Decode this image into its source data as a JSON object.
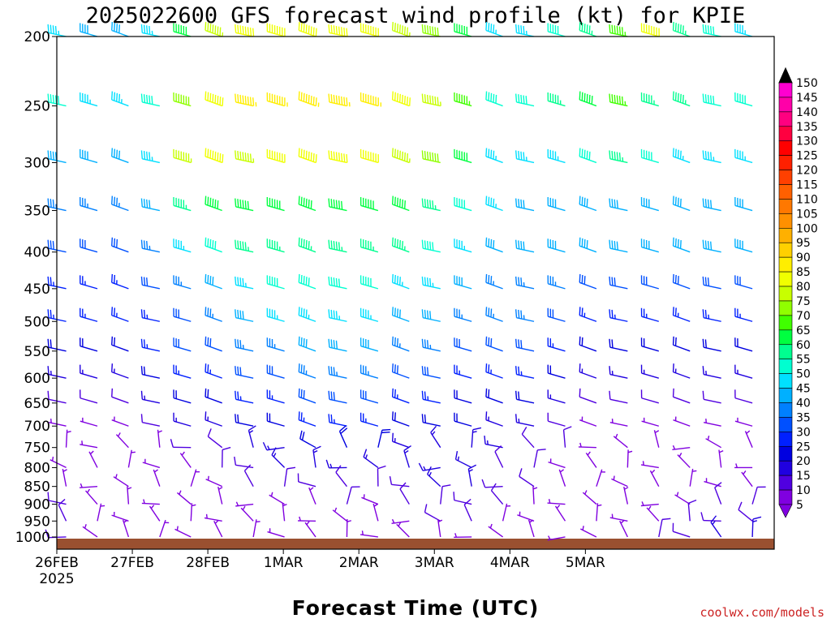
{
  "chart_data": {
    "type": "wind-profile",
    "title": "2025022600 GFS forecast wind profile (kt) for KPIE",
    "xlabel": "Forecast Time (UTC)",
    "ylabel": "",
    "credit": "coolwx.com/models",
    "x_ticks": [
      {
        "label": "26FEB",
        "sublabel": "2025"
      },
      {
        "label": "27FEB",
        "sublabel": ""
      },
      {
        "label": "28FEB",
        "sublabel": ""
      },
      {
        "label": "1MAR",
        "sublabel": ""
      },
      {
        "label": "2MAR",
        "sublabel": ""
      },
      {
        "label": "3MAR",
        "sublabel": ""
      },
      {
        "label": "4MAR",
        "sublabel": ""
      },
      {
        "label": "5MAR",
        "sublabel": ""
      }
    ],
    "x_range_days": [
      0,
      9.5
    ],
    "y_levels": [
      200,
      250,
      300,
      350,
      400,
      450,
      500,
      550,
      600,
      650,
      700,
      750,
      800,
      850,
      900,
      950,
      1000
    ],
    "y_scale": "log-pressure",
    "y_range_hpa": [
      200,
      1040
    ],
    "colorbar_levels": [
      150,
      145,
      140,
      135,
      130,
      125,
      120,
      115,
      110,
      105,
      100,
      95,
      90,
      85,
      80,
      75,
      70,
      65,
      60,
      55,
      50,
      45,
      40,
      35,
      30,
      25,
      20,
      15,
      10,
      5
    ],
    "colorbar_colors": {
      "150": "#ff00ff",
      "145": "#ff00d0",
      "140": "#ff00a8",
      "135": "#ff0080",
      "130": "#ff0040",
      "125": "#ff0000",
      "120": "#ff2000",
      "115": "#ff4000",
      "110": "#ff6000",
      "105": "#ff7800",
      "100": "#ff9000",
      "95": "#ffb000",
      "90": "#ffd000",
      "85": "#ffee00",
      "80": "#f0ff00",
      "75": "#c8ff00",
      "70": "#90ff00",
      "65": "#40ff00",
      "60": "#00ff40",
      "55": "#00ff90",
      "50": "#00ffd0",
      "45": "#00e0ff",
      "40": "#00b0ff",
      "35": "#0080ff",
      "30": "#0050ff",
      "25": "#0020ff",
      "20": "#0000e0",
      "15": "#2000e0",
      "10": "#5000e0",
      "5": "#8000e0"
    },
    "ground_color": "#9a5030",
    "profiles": [
      {
        "pressure": 200,
        "speed": [
          45,
          40,
          40,
          45,
          60,
          75,
          80,
          82,
          82,
          80,
          80,
          78,
          70,
          60,
          45,
          45,
          50,
          55,
          65,
          80,
          55,
          50,
          45
        ]
      },
      {
        "pressure": 250,
        "speed": [
          50,
          45,
          45,
          50,
          70,
          80,
          85,
          88,
          88,
          86,
          85,
          80,
          75,
          65,
          50,
          50,
          55,
          60,
          65,
          55,
          55,
          50,
          50
        ]
      },
      {
        "pressure": 300,
        "speed": [
          40,
          40,
          40,
          45,
          75,
          80,
          75,
          82,
          82,
          80,
          80,
          78,
          70,
          60,
          45,
          45,
          45,
          50,
          55,
          50,
          45,
          45,
          45
        ]
      },
      {
        "pressure": 350,
        "speed": [
          35,
          35,
          35,
          40,
          55,
          60,
          60,
          60,
          62,
          62,
          62,
          60,
          58,
          50,
          45,
          40,
          40,
          40,
          40,
          40,
          40,
          40,
          40
        ]
      },
      {
        "pressure": 400,
        "speed": [
          30,
          30,
          30,
          35,
          45,
          50,
          55,
          55,
          58,
          58,
          58,
          55,
          52,
          45,
          40,
          40,
          40,
          40,
          40,
          40,
          40,
          40,
          40
        ]
      },
      {
        "pressure": 450,
        "speed": [
          25,
          25,
          25,
          30,
          35,
          40,
          45,
          50,
          52,
          52,
          50,
          48,
          45,
          40,
          38,
          35,
          35,
          30,
          30,
          30,
          30,
          30,
          30
        ]
      },
      {
        "pressure": 500,
        "speed": [
          25,
          25,
          25,
          25,
          30,
          35,
          40,
          45,
          48,
          48,
          45,
          42,
          40,
          38,
          35,
          35,
          30,
          25,
          25,
          25,
          25,
          25,
          25
        ]
      },
      {
        "pressure": 550,
        "speed": [
          20,
          20,
          20,
          25,
          30,
          30,
          35,
          38,
          40,
          42,
          40,
          38,
          35,
          32,
          30,
          30,
          25,
          20,
          20,
          20,
          20,
          20,
          20
        ]
      },
      {
        "pressure": 600,
        "speed": [
          15,
          15,
          15,
          20,
          25,
          25,
          30,
          32,
          35,
          35,
          35,
          32,
          30,
          28,
          25,
          25,
          20,
          15,
          15,
          15,
          15,
          15,
          15
        ]
      },
      {
        "pressure": 650,
        "speed": [
          10,
          10,
          10,
          15,
          20,
          20,
          25,
          28,
          30,
          30,
          30,
          28,
          25,
          22,
          20,
          20,
          15,
          10,
          10,
          10,
          10,
          10,
          10
        ]
      },
      {
        "pressure": 700,
        "speed": [
          8,
          8,
          8,
          10,
          15,
          15,
          20,
          22,
          25,
          25,
          25,
          22,
          20,
          20,
          18,
          15,
          12,
          8,
          8,
          8,
          8,
          8,
          8
        ]
      },
      {
        "pressure": 750,
        "speed": [
          5,
          5,
          5,
          8,
          10,
          12,
          15,
          18,
          20,
          22,
          20,
          18,
          18,
          18,
          15,
          12,
          10,
          5,
          5,
          5,
          5,
          5,
          5
        ]
      },
      {
        "pressure": 800,
        "speed": [
          5,
          5,
          5,
          5,
          8,
          10,
          12,
          15,
          18,
          18,
          15,
          15,
          15,
          15,
          12,
          10,
          8,
          5,
          5,
          5,
          5,
          5,
          5
        ]
      },
      {
        "pressure": 850,
        "speed": [
          8,
          5,
          5,
          5,
          5,
          8,
          10,
          12,
          12,
          12,
          10,
          12,
          15,
          15,
          12,
          10,
          8,
          5,
          5,
          5,
          5,
          5,
          5
        ]
      },
      {
        "pressure": 900,
        "speed": [
          10,
          5,
          5,
          5,
          5,
          5,
          8,
          8,
          8,
          10,
          8,
          10,
          12,
          12,
          10,
          8,
          5,
          5,
          5,
          5,
          8,
          10,
          10
        ]
      },
      {
        "pressure": 950,
        "speed": [
          10,
          5,
          5,
          5,
          5,
          5,
          5,
          5,
          5,
          5,
          5,
          8,
          10,
          10,
          8,
          5,
          5,
          5,
          5,
          8,
          10,
          12,
          12
        ]
      },
      {
        "pressure": 1000,
        "speed": [
          10,
          5,
          5,
          5,
          5,
          5,
          5,
          5,
          5,
          5,
          5,
          5,
          8,
          8,
          5,
          5,
          5,
          5,
          5,
          10,
          12,
          15,
          15
        ]
      }
    ]
  }
}
